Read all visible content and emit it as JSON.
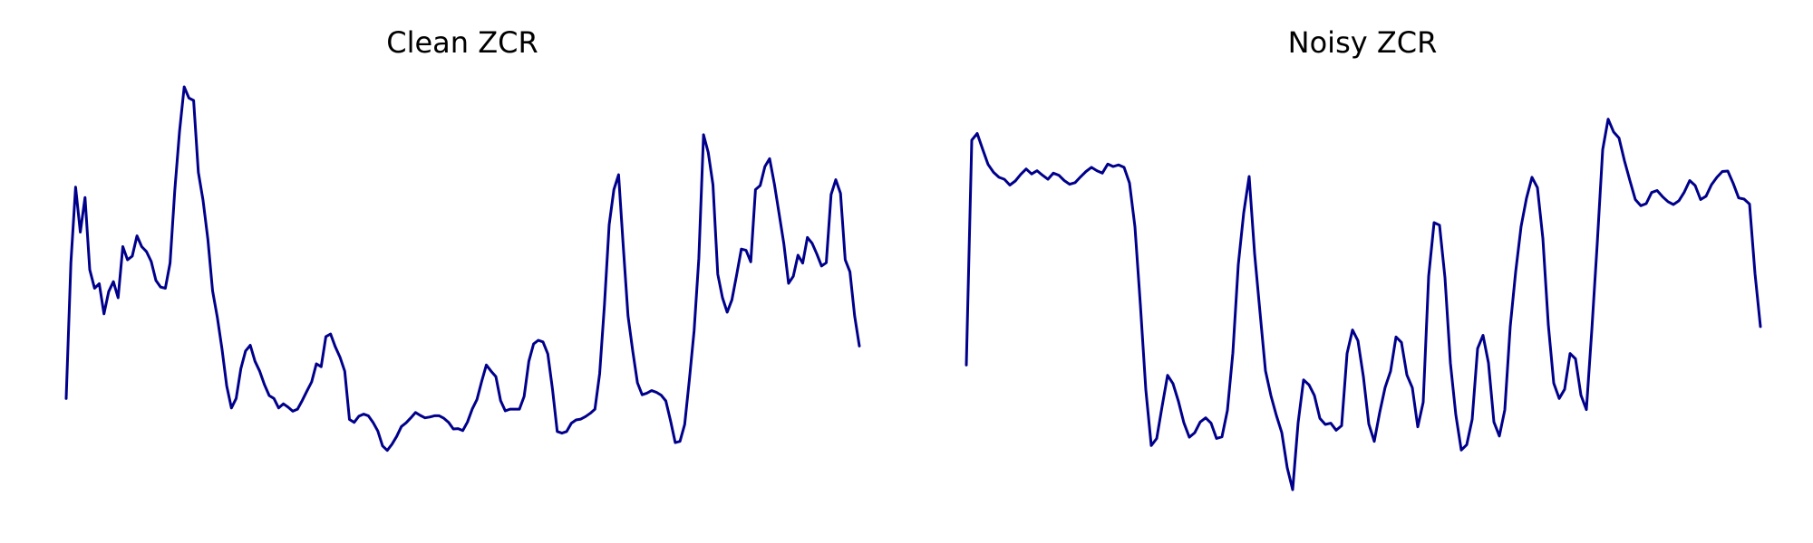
{
  "chart_data": [
    {
      "type": "line",
      "title": "Clean ZCR",
      "xlabel": "",
      "ylabel": "",
      "grid": false,
      "axes_visible": false,
      "color": "#00008b",
      "xlim": [
        0,
        150
      ],
      "ylim": [
        0,
        1
      ],
      "series": [
        {
          "values": [
            0.245,
            0.574,
            0.757,
            0.648,
            0.732,
            0.557,
            0.512,
            0.523,
            0.45,
            0.504,
            0.528,
            0.489,
            0.613,
            0.581,
            0.59,
            0.639,
            0.613,
            0.601,
            0.577,
            0.531,
            0.515,
            0.512,
            0.573,
            0.749,
            0.891,
            1.0,
            0.973,
            0.967,
            0.793,
            0.725,
            0.631,
            0.506,
            0.442,
            0.365,
            0.275,
            0.222,
            0.245,
            0.317,
            0.36,
            0.374,
            0.335,
            0.311,
            0.278,
            0.252,
            0.245,
            0.222,
            0.232,
            0.224,
            0.214,
            0.219,
            0.24,
            0.263,
            0.285,
            0.329,
            0.322,
            0.395,
            0.401,
            0.37,
            0.345,
            0.311,
            0.194,
            0.187,
            0.202,
            0.207,
            0.203,
            0.187,
            0.166,
            0.13,
            0.119,
            0.134,
            0.153,
            0.177,
            0.186,
            0.198,
            0.211,
            0.204,
            0.198,
            0.2,
            0.203,
            0.203,
            0.197,
            0.187,
            0.171,
            0.172,
            0.167,
            0.188,
            0.219,
            0.242,
            0.286,
            0.326,
            0.311,
            0.298,
            0.24,
            0.215,
            0.219,
            0.219,
            0.219,
            0.25,
            0.335,
            0.377,
            0.386,
            0.382,
            0.353,
            0.267,
            0.165,
            0.161,
            0.165,
            0.185,
            0.193,
            0.195,
            0.201,
            0.209,
            0.219,
            0.305,
            0.472,
            0.666,
            0.751,
            0.787,
            0.612,
            0.445,
            0.36,
            0.283,
            0.254,
            0.258,
            0.264,
            0.26,
            0.253,
            0.239,
            0.191,
            0.138,
            0.141,
            0.182,
            0.291,
            0.409,
            0.584,
            0.884,
            0.841,
            0.763,
            0.546,
            0.489,
            0.454,
            0.484,
            0.544,
            0.607,
            0.604,
            0.576,
            0.751,
            0.761,
            0.807,
            0.826,
            0.764,
            0.692,
            0.62,
            0.524,
            0.541,
            0.592,
            0.573,
            0.635,
            0.621,
            0.595,
            0.566,
            0.574,
            0.739,
            0.775,
            0.742,
            0.581,
            0.552,
            0.445,
            0.372
          ]
        }
      ]
    },
    {
      "type": "line",
      "title": "Noisy ZCR",
      "xlabel": "",
      "ylabel": "",
      "grid": false,
      "axes_visible": false,
      "color": "#00008b",
      "xlim": [
        0,
        150
      ],
      "ylim": [
        0,
        1
      ],
      "series": [
        {
          "values": [
            0.326,
            0.871,
            0.887,
            0.849,
            0.812,
            0.793,
            0.781,
            0.776,
            0.762,
            0.772,
            0.788,
            0.801,
            0.789,
            0.797,
            0.786,
            0.776,
            0.791,
            0.786,
            0.773,
            0.764,
            0.768,
            0.782,
            0.795,
            0.805,
            0.797,
            0.791,
            0.813,
            0.807,
            0.811,
            0.805,
            0.767,
            0.661,
            0.472,
            0.266,
            0.131,
            0.148,
            0.226,
            0.301,
            0.281,
            0.238,
            0.186,
            0.151,
            0.162,
            0.188,
            0.198,
            0.185,
            0.148,
            0.152,
            0.216,
            0.355,
            0.569,
            0.695,
            0.783,
            0.596,
            0.453,
            0.312,
            0.252,
            0.204,
            0.162,
            0.077,
            0.024,
            0.186,
            0.29,
            0.278,
            0.252,
            0.197,
            0.182,
            0.185,
            0.168,
            0.179,
            0.354,
            0.411,
            0.385,
            0.298,
            0.183,
            0.141,
            0.211,
            0.272,
            0.311,
            0.394,
            0.381,
            0.302,
            0.271,
            0.176,
            0.236,
            0.541,
            0.671,
            0.665,
            0.538,
            0.331,
            0.205,
            0.12,
            0.133,
            0.194,
            0.366,
            0.398,
            0.331,
            0.188,
            0.154,
            0.217,
            0.419,
            0.552,
            0.662,
            0.731,
            0.781,
            0.756,
            0.633,
            0.424,
            0.282,
            0.245,
            0.267,
            0.354,
            0.341,
            0.253,
            0.218,
            0.411,
            0.621,
            0.848,
            0.922,
            0.891,
            0.876,
            0.821,
            0.773,
            0.727,
            0.712,
            0.717,
            0.744,
            0.749,
            0.734,
            0.722,
            0.715,
            0.724,
            0.745,
            0.773,
            0.761,
            0.727,
            0.735,
            0.763,
            0.781,
            0.795,
            0.796,
            0.766,
            0.731,
            0.728,
            0.716,
            0.548,
            0.419
          ]
        }
      ]
    }
  ]
}
